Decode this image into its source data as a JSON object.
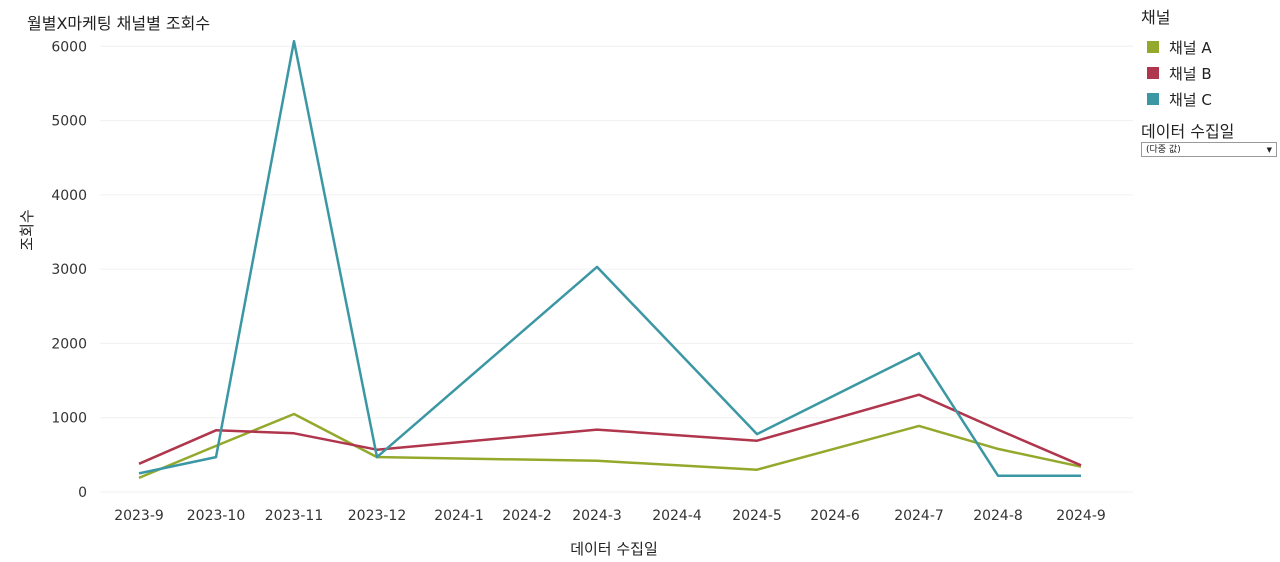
{
  "title": "월별X마케팅 채널별 조회수",
  "legend": {
    "title": "채널",
    "items": [
      {
        "label": "채널 A",
        "color": "#93a92c"
      },
      {
        "label": "채널 B",
        "color": "#b0364d"
      },
      {
        "label": "채널 C",
        "color": "#3a97a3"
      }
    ]
  },
  "filter": {
    "title": "데이터 수집일",
    "value": "(다중 값)"
  },
  "chart_data": {
    "type": "line",
    "title": "월별X마케팅 채널별 조회수",
    "xlabel": "데이터 수집일",
    "ylabel": "조회수",
    "categories": [
      "2023-9",
      "2023-10",
      "2023-11",
      "2023-12",
      "2024-1",
      "2024-2",
      "2024-3",
      "2024-4",
      "2024-5",
      "2024-6",
      "2024-7",
      "2024-8",
      "2024-9"
    ],
    "ylim": [
      0,
      6300
    ],
    "yticks": [
      0,
      1000,
      2000,
      3000,
      4000,
      5000,
      6000
    ],
    "grid": true,
    "legend_position": "right",
    "series": [
      {
        "name": "채널 A",
        "color": "#93a92c",
        "points": [
          [
            "2023-9",
            190
          ],
          [
            "2023-10",
            620
          ],
          [
            "2023-11",
            1050
          ],
          [
            "2023-12",
            470
          ],
          [
            "2024-3",
            420
          ],
          [
            "2024-5",
            300
          ],
          [
            "2024-7",
            890
          ],
          [
            "2024-8",
            580
          ],
          [
            "2024-9",
            340
          ]
        ]
      },
      {
        "name": "채널 B",
        "color": "#b0364d",
        "points": [
          [
            "2023-9",
            380
          ],
          [
            "2023-10",
            830
          ],
          [
            "2023-11",
            790
          ],
          [
            "2023-12",
            570
          ],
          [
            "2024-3",
            840
          ],
          [
            "2024-5",
            690
          ],
          [
            "2024-7",
            1310
          ],
          [
            "2024-8",
            840
          ],
          [
            "2024-9",
            360
          ]
        ]
      },
      {
        "name": "채널 C",
        "color": "#3a97a3",
        "points": [
          [
            "2023-9",
            250
          ],
          [
            "2023-10",
            470
          ],
          [
            "2023-11",
            6070
          ],
          [
            "2023-12",
            470
          ],
          [
            "2024-3",
            3030
          ],
          [
            "2024-5",
            780
          ],
          [
            "2024-7",
            1870
          ],
          [
            "2024-8",
            220
          ],
          [
            "2024-9",
            220
          ]
        ]
      }
    ]
  }
}
